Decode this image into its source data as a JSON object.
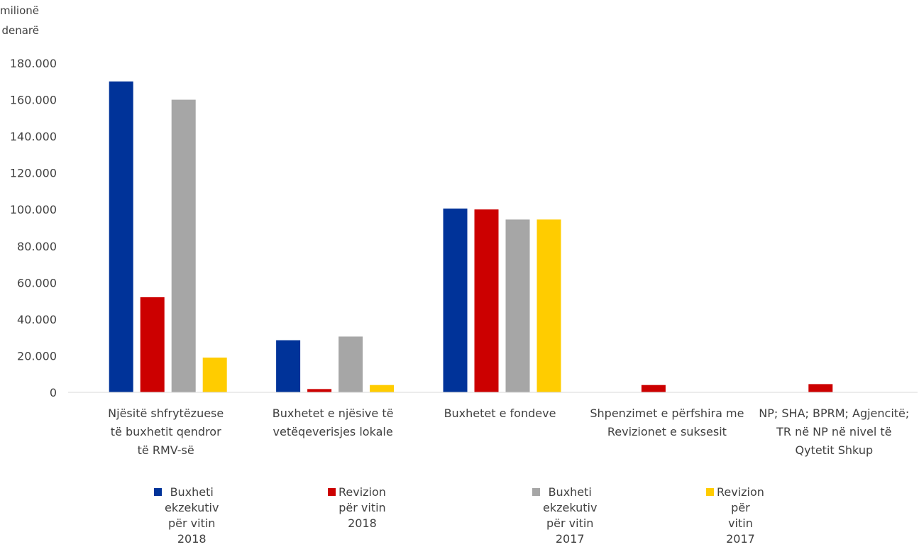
{
  "chart_data": {
    "type": "bar",
    "ylabel": "milionë\ndenarë",
    "ylim": [
      0,
      180000
    ],
    "yticks": [
      "0",
      "20.000",
      "40.000",
      "60.000",
      "80.000",
      "100.000",
      "120.000",
      "140.000",
      "160.000",
      "180.000"
    ],
    "grid": false,
    "legend_position": "bottom",
    "categories": [
      "Njësitë shfrytëzuese\ntë buxhetit qendror\ntë RMV-së",
      "Buxhetet e njësive të\nvetëqeverisjes lokale",
      "Buxhetet e fondeve",
      "Shpenzimet e përfshira me\nRevizionet e suksesit",
      "NP; SHA; BPRM; Agjencitë;\nTR në NP në nivel të\nQytetit Shkup"
    ],
    "series": [
      {
        "name": "Buxheti ekzekutiv\npër vitin 2018",
        "color": "#003399",
        "values": [
          170000,
          28500,
          100500,
          0,
          0
        ]
      },
      {
        "name": "Revizion për vitin 2018",
        "color": "#cc0000",
        "values": [
          52000,
          1800,
          100000,
          4000,
          4500
        ]
      },
      {
        "name": "Buxheti ekzekutiv\npër vitin 2017",
        "color": "#a6a6a6",
        "values": [
          160000,
          30500,
          94500,
          0,
          0
        ]
      },
      {
        "name": "Revizion për\nvitin 2017",
        "color": "#ffcc00",
        "values": [
          19000,
          4000,
          94500,
          0,
          0
        ]
      }
    ]
  }
}
